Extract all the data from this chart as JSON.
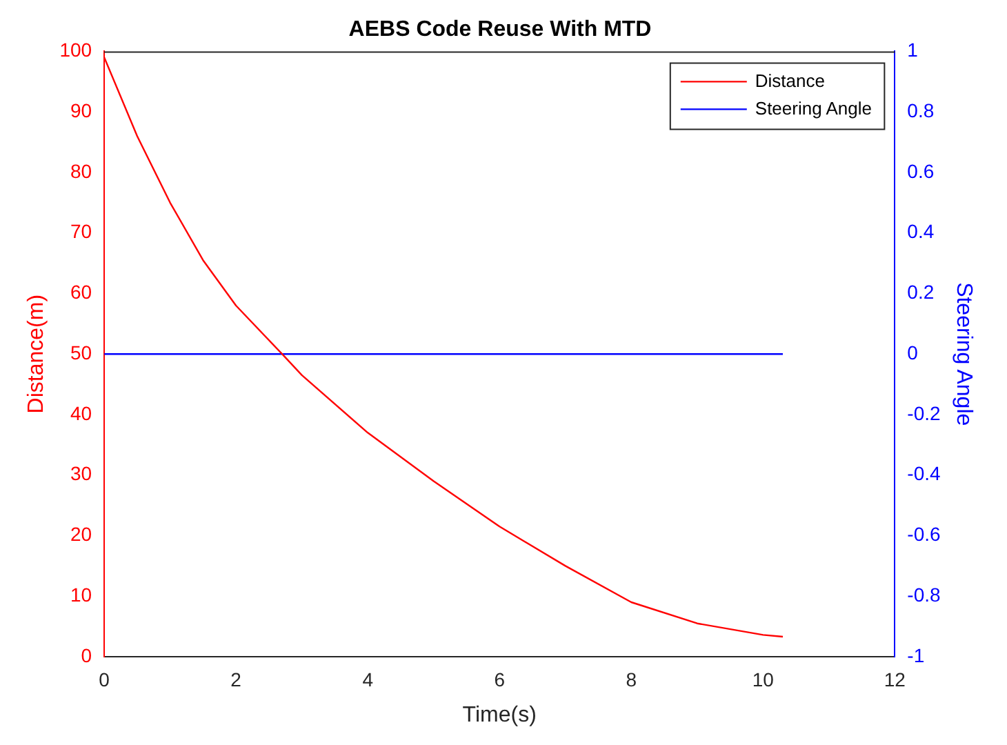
{
  "chart_data": {
    "type": "line",
    "title": "AEBS Code Reuse With MTD",
    "xlabel": "Time(s)",
    "ylabel": "Distance(m)",
    "y2label": "Steering Angle",
    "series": [
      {
        "name": "Distance",
        "color": "#ff0000",
        "x": [
          0,
          0.5,
          1,
          1.5,
          2,
          2.7,
          3,
          4,
          5,
          6,
          7,
          8,
          9,
          10,
          10.3
        ],
        "values": [
          99,
          86,
          75,
          65.5,
          58,
          50,
          46.5,
          37,
          29,
          21.5,
          15,
          9,
          5.5,
          3.6,
          3.3
        ]
      },
      {
        "name": "Steering Angle",
        "color": "#0000ff",
        "axis": "y2",
        "x": [
          0,
          10.3
        ],
        "values": [
          0,
          0
        ]
      }
    ],
    "xlim": [
      0,
      12
    ],
    "xticks": [
      0,
      2,
      4,
      6,
      8,
      10,
      12
    ],
    "ylim": [
      0,
      100
    ],
    "yticks": [
      0,
      10,
      20,
      30,
      40,
      50,
      60,
      70,
      80,
      90,
      100
    ],
    "y2lim": [
      -1,
      1
    ],
    "y2ticks": [
      -1,
      -0.8,
      -0.6,
      -0.4,
      -0.2,
      0,
      0.2,
      0.4,
      0.6,
      0.8,
      1
    ],
    "grid": false,
    "legend": "top right",
    "line_style": "solid",
    "marker": "none"
  }
}
